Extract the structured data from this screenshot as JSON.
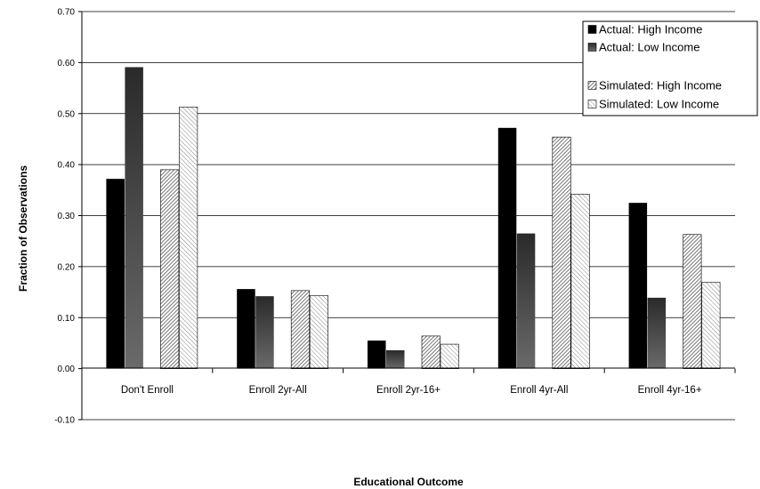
{
  "chart_data": {
    "type": "bar",
    "title": "",
    "xlabel": "Educational Outcome",
    "ylabel": "Fraction of Observations",
    "ylim": [
      -0.1,
      0.7
    ],
    "yticks": [
      "-0.10",
      "0.00",
      "0.10",
      "0.20",
      "0.30",
      "0.40",
      "0.50",
      "0.60",
      "0.70"
    ],
    "grid": true,
    "legend_position": "top-right",
    "categories": [
      "Don't Enroll",
      "Enroll 2yr-All",
      "Enroll 2yr-16+",
      "Enroll 4yr-All",
      "Enroll 4yr-16+"
    ],
    "series": [
      {
        "name": "Actual: High Income",
        "values": [
          0.372,
          0.156,
          0.055,
          0.472,
          0.325
        ],
        "style": "solid-black"
      },
      {
        "name": "Actual: Low Income",
        "values": [
          0.591,
          0.142,
          0.036,
          0.265,
          0.139
        ],
        "style": "gradient-gray"
      },
      {
        "name": "Simulated: High Income",
        "values": [
          0.39,
          0.153,
          0.064,
          0.454,
          0.263
        ],
        "style": "hatch-dense"
      },
      {
        "name": "Simulated: Low Income",
        "values": [
          0.513,
          0.143,
          0.048,
          0.342,
          0.169
        ],
        "style": "hatch-light"
      }
    ]
  }
}
